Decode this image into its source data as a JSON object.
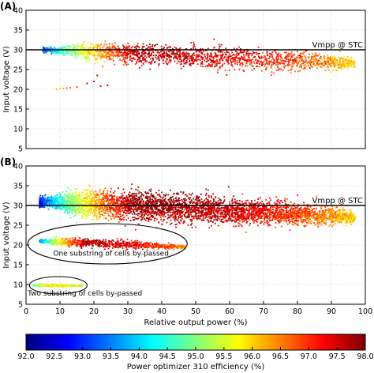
{
  "figure": {
    "colorbar_label": "Power optimizer 310 efficiency (%)",
    "colorbar_range": [
      92.0,
      98.0
    ],
    "colorbar_ticks": [
      "92.0",
      "92.5",
      "93.0",
      "93.5",
      "94.0",
      "94.5",
      "95.0",
      "95.5",
      "96.0",
      "96.5",
      "97.0",
      "97.5",
      "98.0"
    ],
    "colormap": [
      "#00007f",
      "#0000ff",
      "#007fff",
      "#00ffff",
      "#7fff7f",
      "#ffff00",
      "#ff7f00",
      "#ff0000",
      "#7f0000"
    ]
  },
  "chart_data": [
    {
      "type": "scatter",
      "panel_label": "(A)",
      "xlabel": "",
      "ylabel": "Input voltage (V)",
      "xlim": [
        0,
        100
      ],
      "ylim": [
        5,
        40
      ],
      "x_ticks": [],
      "y_ticks": [
        "5",
        "10",
        "15",
        "20",
        "25",
        "30",
        "35",
        "40"
      ],
      "grid": true,
      "reference_line": {
        "y": 30,
        "label": "Vmpp @ STC"
      },
      "clusters": [
        {
          "x_range": [
            5,
            97
          ],
          "y_center_start": 30.0,
          "y_center_end": 26.5,
          "spread_start": 1.8,
          "spread_end": 3.5,
          "efficiency_start": 93.0,
          "efficiency_peak": 97.6,
          "efficiency_end": 96.0
        }
      ],
      "outliers": [
        {
          "x": 9,
          "y": 20.0,
          "efficiency": 96.2
        },
        {
          "x": 10,
          "y": 20.1,
          "efficiency": 96.2
        },
        {
          "x": 11,
          "y": 20.2,
          "efficiency": 96.3
        },
        {
          "x": 12,
          "y": 20.3,
          "efficiency": 96.5
        },
        {
          "x": 13,
          "y": 20.4,
          "efficiency": 96.6
        },
        {
          "x": 15,
          "y": 20.6,
          "efficiency": 96.9
        },
        {
          "x": 18,
          "y": 21.5,
          "efficiency": 97.3
        },
        {
          "x": 20,
          "y": 22.0,
          "efficiency": 97.4
        },
        {
          "x": 21,
          "y": 23.5,
          "efficiency": 97.5
        },
        {
          "x": 22,
          "y": 20.8,
          "efficiency": 97.4
        },
        {
          "x": 24,
          "y": 21.0,
          "efficiency": 97.6
        }
      ]
    },
    {
      "type": "scatter",
      "panel_label": "(B)",
      "xlabel": "Relative output power (%)",
      "ylabel": "Input voltage (V)",
      "xlim": [
        0,
        100
      ],
      "ylim": [
        5,
        40
      ],
      "x_ticks": [
        "0",
        "10",
        "20",
        "30",
        "40",
        "50",
        "60",
        "70",
        "80",
        "90",
        "100"
      ],
      "y_ticks": [
        "5",
        "10",
        "15",
        "20",
        "25",
        "30",
        "35",
        "40"
      ],
      "grid": true,
      "reference_line": {
        "y": 30,
        "label": "Vmpp @ STC"
      },
      "clusters": [
        {
          "x_range": [
            4,
            97
          ],
          "y_center_start": 31.0,
          "y_center_end": 27.0,
          "spread_start": 3.5,
          "spread_end": 3.5,
          "efficiency_start": 92.6,
          "efficiency_peak": 97.8,
          "efficiency_end": 96.0
        },
        {
          "x_range": [
            4,
            47
          ],
          "y_center_start": 21.0,
          "y_center_end": 19.5,
          "spread_start": 1.0,
          "spread_end": 1.0,
          "efficiency_start": 93.2,
          "efficiency_peak": 97.6,
          "efficiency_end": 96.4
        },
        {
          "x_range": [
            2,
            17
          ],
          "y_center_start": 9.8,
          "y_center_end": 9.7,
          "spread_start": 0.3,
          "spread_end": 0.3,
          "efficiency_start": 94.8,
          "efficiency_peak": 95.8,
          "efficiency_end": 95.4
        }
      ],
      "annotations": [
        {
          "text": "One substring of cells by-passed",
          "x": 8,
          "y": 17.3
        },
        {
          "text": "Two substring of cells by-passed",
          "x": 0.5,
          "y": 7.2
        }
      ]
    }
  ]
}
